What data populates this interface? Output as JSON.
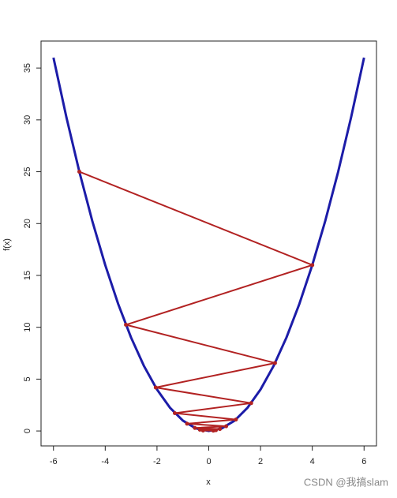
{
  "chart_data": {
    "type": "line",
    "xlabel": "x",
    "ylabel": "f(x)",
    "xlim": [
      -6.48,
      6.48
    ],
    "ylim": [
      -1.44,
      37.6
    ],
    "xticks": [
      -6,
      -4,
      -2,
      0,
      2,
      4,
      6
    ],
    "yticks": [
      0,
      5,
      10,
      15,
      20,
      25,
      30,
      35
    ],
    "series": [
      {
        "color": "#1c1ca8",
        "x": [
          -6,
          -5.5,
          -5,
          -4.5,
          -4,
          -3.5,
          -3,
          -2.5,
          -2,
          -1.5,
          -1,
          -0.5,
          0,
          0.5,
          1,
          1.5,
          2,
          2.5,
          3,
          3.5,
          4,
          4.5,
          5,
          5.5,
          6
        ],
        "values": [
          36,
          30.25,
          25,
          20.25,
          16,
          12.25,
          9,
          6.25,
          4,
          2.25,
          1,
          0.25,
          0,
          0.25,
          1,
          2.25,
          4,
          6.25,
          9,
          12.25,
          16,
          20.25,
          25,
          30.25,
          36
        ]
      },
      {
        "color": "#b22222",
        "markers": true,
        "x": [
          -5,
          4,
          -3.2,
          2.56,
          -2.048,
          1.6384,
          -1.31072,
          1.048576,
          -0.838861,
          0.671089,
          -0.536871,
          0.429497,
          -0.343597,
          0.274878,
          -0.219902,
          0.175922
        ],
        "values": [
          25,
          16,
          10.24,
          6.5536,
          4.194304,
          2.684355,
          1.717987,
          1.099512,
          0.703687,
          0.45036,
          0.28823,
          0.184467,
          0.118059,
          0.075558,
          0.048357,
          0.030949
        ]
      }
    ],
    "watermark": "CSDN @我搞slam"
  }
}
